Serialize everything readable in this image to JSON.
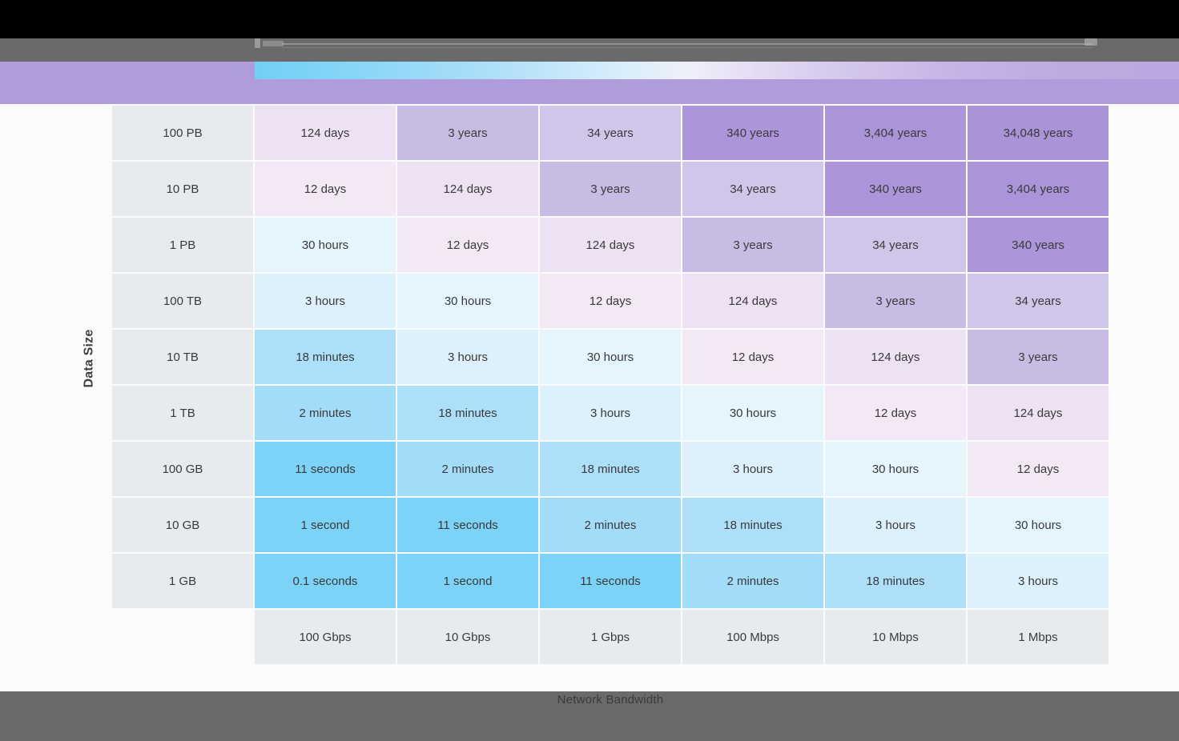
{
  "chrome": {
    "top_bar_color": "#000000",
    "toolbar_color": "#6a6a6a",
    "banner_color": "#b19cdb",
    "footer_color": "#6a6a6a"
  },
  "axes": {
    "y_label": "Data Size",
    "x_label": "Network Bandwidth"
  },
  "chart_data": {
    "type": "heatmap",
    "title": "",
    "ylabel": "Data Size",
    "xlabel": "Network Bandwidth",
    "rows": [
      "100 PB",
      "10 PB",
      "1 PB",
      "100 TB",
      "10 TB",
      "1 TB",
      "100 GB",
      "10 GB",
      "1 GB"
    ],
    "columns": [
      "100 Gbps",
      "10 Gbps",
      "1 Gbps",
      "100 Mbps",
      "10 Mbps",
      "1 Mbps"
    ],
    "cells": [
      [
        "124 days",
        "3 years",
        "34 years",
        "340 years",
        "3,404 years",
        "34,048 years"
      ],
      [
        "12 days",
        "124 days",
        "3 years",
        "34 years",
        "340 years",
        "3,404 years"
      ],
      [
        "30 hours",
        "12 days",
        "124 days",
        "3 years",
        "34 years",
        "340 years"
      ],
      [
        "3 hours",
        "30 hours",
        "12 days",
        "124 days",
        "3 years",
        "34 years"
      ],
      [
        "18 minutes",
        "3 hours",
        "30 hours",
        "12 days",
        "124 days",
        "3 years"
      ],
      [
        "2 minutes",
        "18 minutes",
        "3 hours",
        "30 hours",
        "12 days",
        "124 days"
      ],
      [
        "11 seconds",
        "2 minutes",
        "18 minutes",
        "3 hours",
        "30 hours",
        "12 days"
      ],
      [
        "1 second",
        "11 seconds",
        "2 minutes",
        "18 minutes",
        "3 hours",
        "30 hours"
      ],
      [
        "0.1 seconds",
        "1 second",
        "11 seconds",
        "2 minutes",
        "18 minutes",
        "3 hours"
      ]
    ],
    "color_map": {
      "0.1 seconds": "#7dd3f7",
      "1 second": "#7dd3f7",
      "11 seconds": "#7dd3f7",
      "2 minutes": "#a3dcf8",
      "18 minutes": "#aedff9",
      "3 hours": "#dcf1fc",
      "30 hours": "#e4f5fd",
      "12 days": "#f2e8f6",
      "124 days": "#ece2f4",
      "3 years": "#c9bce4",
      "34 years": "#d0c6ea",
      "340 years": "#ac96d9",
      "3,404 years": "#ab94d8",
      "34,048 years": "#aa93d7"
    },
    "header_bg": "#e7ebee",
    "cell_text_color": "#3a3a3a",
    "legend": "off",
    "grid": "off"
  }
}
